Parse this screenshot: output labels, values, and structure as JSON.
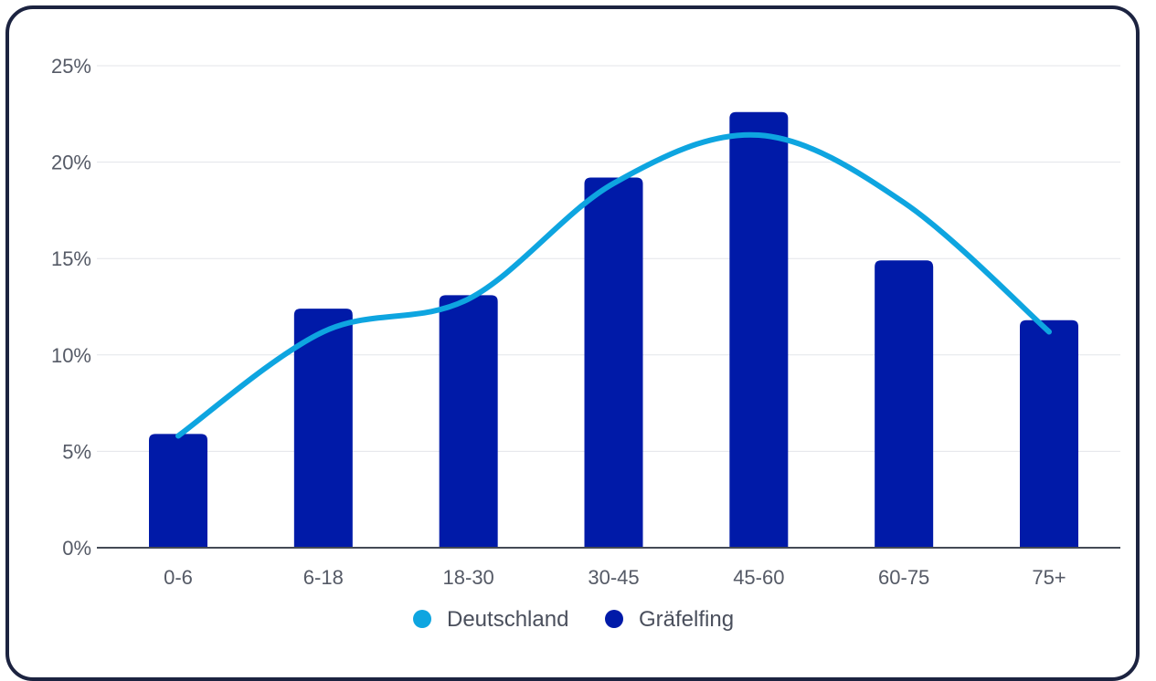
{
  "chart_data": {
    "type": "bar",
    "categories": [
      "0-6",
      "6-18",
      "18-30",
      "30-45",
      "45-60",
      "60-75",
      "75+"
    ],
    "series": [
      {
        "name": "Gräfelfing",
        "type": "bar",
        "color": "#001aa8",
        "values": [
          5.9,
          12.4,
          13.1,
          19.2,
          22.6,
          14.9,
          11.8
        ]
      },
      {
        "name": "Deutschland",
        "type": "line",
        "color": "#0ea5e0",
        "values": [
          5.8,
          11.2,
          12.9,
          18.9,
          21.4,
          17.9,
          11.2
        ]
      }
    ],
    "ylim": [
      0,
      25
    ],
    "yticks": [
      0,
      5,
      10,
      15,
      20,
      25
    ],
    "ytick_labels": [
      "0%",
      "5%",
      "10%",
      "15%",
      "20%",
      "25%"
    ],
    "grid": true,
    "legend": "bottom-center"
  }
}
